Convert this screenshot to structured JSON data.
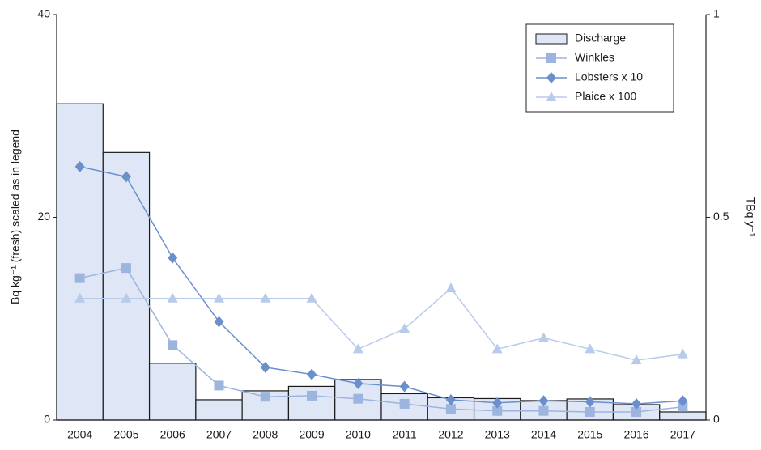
{
  "chart_data": {
    "type": "bar",
    "ylabel": "Bq kg⁻¹ (fresh) scaled as in legend",
    "y2label": "TBq y⁻¹",
    "categories": [
      "2004",
      "2005",
      "2006",
      "2007",
      "2008",
      "2009",
      "2010",
      "2011",
      "2012",
      "2013",
      "2014",
      "2015",
      "2016",
      "2017"
    ],
    "series": [
      {
        "name": "Discharge",
        "type": "bar",
        "axis": "y2",
        "color": "#dfe6f5",
        "values": [
          0.78,
          0.66,
          0.14,
          0.05,
          0.072,
          0.083,
          0.1,
          0.065,
          0.055,
          0.053,
          0.048,
          0.052,
          0.038,
          0.02
        ]
      },
      {
        "name": "Winkles",
        "type": "line",
        "marker": "square",
        "color": "#9db4df",
        "values": [
          14,
          15,
          7.4,
          3.4,
          2.3,
          2.4,
          2.1,
          1.6,
          1.1,
          0.9,
          0.9,
          0.8,
          0.8,
          1.3
        ]
      },
      {
        "name": "Lobsters x 10",
        "type": "line",
        "marker": "diamond",
        "color": "#6b8fcd",
        "values": [
          25,
          24,
          16,
          9.7,
          5.2,
          4.5,
          3.6,
          3.3,
          2.0,
          1.7,
          1.9,
          1.8,
          1.6,
          1.9
        ]
      },
      {
        "name": "Plaice x 100",
        "type": "line",
        "marker": "triangle",
        "color": "#b8cbea",
        "values": [
          12,
          12,
          12,
          12,
          12,
          12,
          7.0,
          9.0,
          13,
          7.0,
          8.1,
          7.0,
          5.9,
          6.5
        ]
      }
    ],
    "ylim": [
      0,
      40
    ],
    "yticks": [
      0,
      20,
      40
    ],
    "y2lim": [
      0,
      1
    ],
    "y2ticks": [
      0,
      0.5,
      1
    ],
    "legend": "upper right"
  }
}
